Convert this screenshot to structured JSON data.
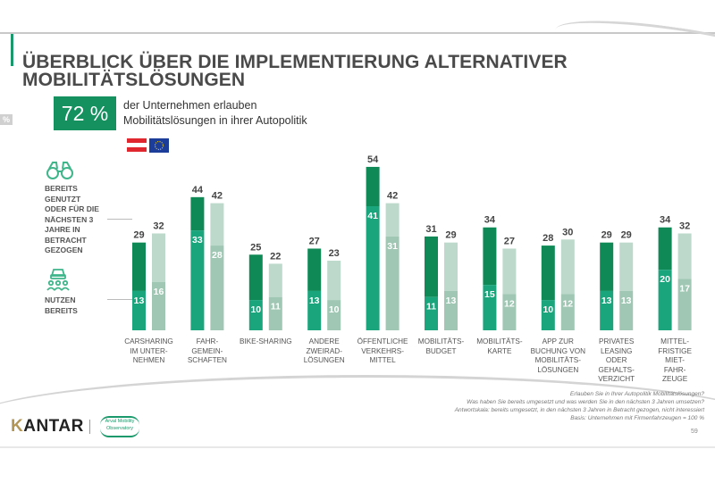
{
  "header": {
    "title_line1": "ÜBERBLICK ÜBER DIE IMPLEMENTIERUNG ALTERNATIVER",
    "title_line2": "MOBILITÄTSLÖSUNGEN",
    "side_tag": "%"
  },
  "kpi": {
    "value": "72 %",
    "text_line1": "der Unternehmen erlauben",
    "text_line2": "Mobilitätslösungen in ihrer Autopolitik",
    "flags": [
      "austria-flag",
      "eu-flag"
    ]
  },
  "legend": {
    "items": [
      {
        "icon": "binoculars-icon",
        "label": "BEREITS\nGENUTZT\nODER FÜR DIE\nNÄCHSTEN 3\nJAHRE IN\nBETRACHT\nGEZOGEN"
      },
      {
        "icon": "car-people-icon",
        "label": "NUTZEN\nBEREITS"
      }
    ]
  },
  "colors": {
    "at_total": "#0f8a56",
    "at_used": "#1aa57c",
    "eu_total": "#bcd9cb",
    "eu_used": "#9fc7b3",
    "accent": "#14915f",
    "title": "#4a4a4a"
  },
  "chart_data": {
    "type": "bar",
    "title": "ÜBERBLICK ÜBER DIE IMPLEMENTIERUNG ALTERNATIVER MOBILITÄTSLÖSUNGEN",
    "xlabel": "",
    "ylabel": "",
    "ylim": [
      0,
      60
    ],
    "grid": false,
    "legend_position": "left",
    "categories": [
      "CARSHARING\nIM UNTER-\nNEHMEN",
      "FAHR-\nGEMEIN-\nSCHAFTEN",
      "BIKE-SHARING",
      "ANDERE\nZWEIRAD-\nLÖSUNGEN",
      "ÖFFENTLICHE\nVERKEHRS-\nMITTEL",
      "MOBILITÄTS-\nBUDGET",
      "MOBILITÄTS-\nKARTE",
      "APP ZUR\nBUCHUNG VON\nMOBILITÄTS-\nLÖSUNGEN",
      "PRIVATES\nLEASING\nODER\nGEHALTS-\nVERZICHT",
      "MITTEL-\nFRISTIGE\nMIET-\nFAHR-\nZEUGE"
    ],
    "series": [
      {
        "name": "Österreich – bereits genutzt oder in Betracht gezogen",
        "group": "AT",
        "values": [
          29,
          44,
          25,
          27,
          54,
          31,
          34,
          28,
          29,
          34
        ]
      },
      {
        "name": "Österreich – nutzen bereits",
        "group": "AT",
        "values": [
          13,
          33,
          10,
          13,
          41,
          11,
          15,
          10,
          13,
          20
        ]
      },
      {
        "name": "Europa – bereits genutzt oder in Betracht gezogen",
        "group": "EU",
        "values": [
          32,
          42,
          22,
          23,
          42,
          29,
          27,
          30,
          29,
          32
        ]
      },
      {
        "name": "Europa – nutzen bereits",
        "group": "EU",
        "values": [
          16,
          28,
          11,
          10,
          31,
          13,
          12,
          12,
          13,
          17
        ]
      }
    ]
  },
  "notes": {
    "lines": [
      "Erlauben Sie in Ihrer Autopolitik Mobilitätslösungen?",
      "Was haben Sie bereits umgesetzt und was werden Sie in den nächsten 3 Jahren umsetzen?",
      "Antwortskala: bereits umgesetzt, in den nächsten 3 Jahren in Betracht gezogen, nicht interessiert",
      "Basis: Unternehmen mit Firmenfahrzeugen = 100 %"
    ]
  },
  "footer": {
    "brand": "KANTAR",
    "brand_initial": "K",
    "brand_rest": "ANTAR",
    "partner_line1": "Arval Mobility",
    "partner_line2": "Observatory",
    "page_number": "59"
  }
}
